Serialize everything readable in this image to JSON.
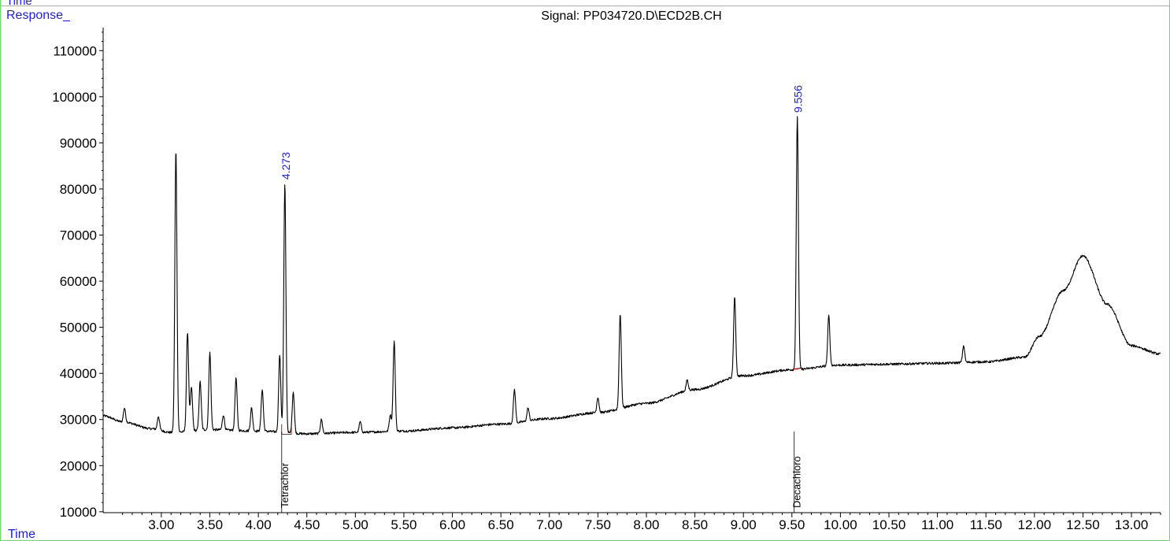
{
  "header": {
    "top_label": "Time",
    "response_label": "Response_",
    "time_label": "Time",
    "signal_title": "Signal: PP034720.D\\ECD2B.CH"
  },
  "colors": {
    "frame": "#66dd66",
    "label_blue": "#1a1aff",
    "trace": "#000000",
    "baseline_red": "#ff0000"
  },
  "chart_data": {
    "type": "line",
    "title": "Signal: PP034720.D\\ECD2B.CH",
    "xlabel": "Time",
    "ylabel": "Response_",
    "xlim": [
      2.4,
      13.3
    ],
    "ylim": [
      9800,
      115000
    ],
    "y_ticks": [
      10000,
      20000,
      30000,
      40000,
      50000,
      60000,
      70000,
      80000,
      90000,
      100000,
      110000
    ],
    "y_tick_labels": [
      "10000",
      "20000",
      "30000",
      "40000",
      "50000",
      "60000",
      "70000",
      "80000",
      "90000",
      "100000",
      "110000"
    ],
    "x_ticks": [
      3.0,
      3.5,
      4.0,
      4.5,
      5.0,
      5.5,
      6.0,
      6.5,
      7.0,
      7.5,
      8.0,
      8.5,
      9.0,
      9.5,
      10.0,
      10.5,
      11.0,
      11.5,
      12.0,
      12.5,
      13.0
    ],
    "x_tick_labels": [
      "3.00",
      "3.50",
      "4.00",
      "4.50",
      "5.00",
      "5.50",
      "6.00",
      "6.50",
      "7.00",
      "7.50",
      "8.00",
      "8.50",
      "9.00",
      "9.50",
      "10.00",
      "10.50",
      "11.00",
      "11.50",
      "12.00",
      "12.50",
      "13.00"
    ],
    "baseline": [
      [
        2.4,
        30800
      ],
      [
        2.6,
        29500
      ],
      [
        2.9,
        28000
      ],
      [
        3.1,
        27200
      ],
      [
        3.5,
        27800
      ],
      [
        4.0,
        27500
      ],
      [
        4.5,
        26900
      ],
      [
        5.0,
        27200
      ],
      [
        5.5,
        27500
      ],
      [
        6.0,
        28200
      ],
      [
        6.5,
        29000
      ],
      [
        7.0,
        30200
      ],
      [
        7.5,
        31500
      ],
      [
        8.0,
        33500
      ],
      [
        8.5,
        36500
      ],
      [
        9.0,
        39500
      ],
      [
        9.5,
        40800
      ],
      [
        10.0,
        41800
      ],
      [
        10.5,
        42000
      ],
      [
        11.0,
        42200
      ],
      [
        11.5,
        42500
      ],
      [
        11.9,
        43500
      ],
      [
        12.05,
        48000
      ],
      [
        12.3,
        58000
      ],
      [
        12.5,
        65500
      ],
      [
        12.75,
        55000
      ],
      [
        13.0,
        46000
      ],
      [
        13.3,
        44200
      ]
    ],
    "peaks": [
      {
        "rt": 2.62,
        "height": 32500
      },
      {
        "rt": 2.97,
        "height": 30700
      },
      {
        "rt": 3.15,
        "height": 88500
      },
      {
        "rt": 3.27,
        "height": 49000
      },
      {
        "rt": 3.31,
        "height": 37000
      },
      {
        "rt": 3.4,
        "height": 38200
      },
      {
        "rt": 3.5,
        "height": 44500
      },
      {
        "rt": 3.64,
        "height": 31000
      },
      {
        "rt": 3.77,
        "height": 39000
      },
      {
        "rt": 3.93,
        "height": 32500
      },
      {
        "rt": 4.04,
        "height": 36500
      },
      {
        "rt": 4.22,
        "height": 44000
      },
      {
        "rt": 4.273,
        "height": 81000
      },
      {
        "rt": 4.36,
        "height": 36000
      },
      {
        "rt": 4.65,
        "height": 30000
      },
      {
        "rt": 5.05,
        "height": 29500
      },
      {
        "rt": 5.36,
        "height": 31000
      },
      {
        "rt": 5.4,
        "height": 47000
      },
      {
        "rt": 6.64,
        "height": 36500
      },
      {
        "rt": 6.78,
        "height": 32500
      },
      {
        "rt": 7.5,
        "height": 34800
      },
      {
        "rt": 7.73,
        "height": 53000
      },
      {
        "rt": 8.42,
        "height": 38500
      },
      {
        "rt": 8.91,
        "height": 56500
      },
      {
        "rt": 9.556,
        "height": 95500
      },
      {
        "rt": 9.88,
        "height": 52500
      },
      {
        "rt": 11.27,
        "height": 46000
      }
    ],
    "retention_labels": [
      {
        "rt": 4.273,
        "text": "4.273",
        "height": 81000
      },
      {
        "rt": 9.556,
        "text": "9.556",
        "height": 95500
      }
    ],
    "compound_labels": [
      {
        "rt": 4.273,
        "text": "Tetrachlor"
      },
      {
        "rt": 9.556,
        "text": "Decachloro"
      }
    ]
  }
}
